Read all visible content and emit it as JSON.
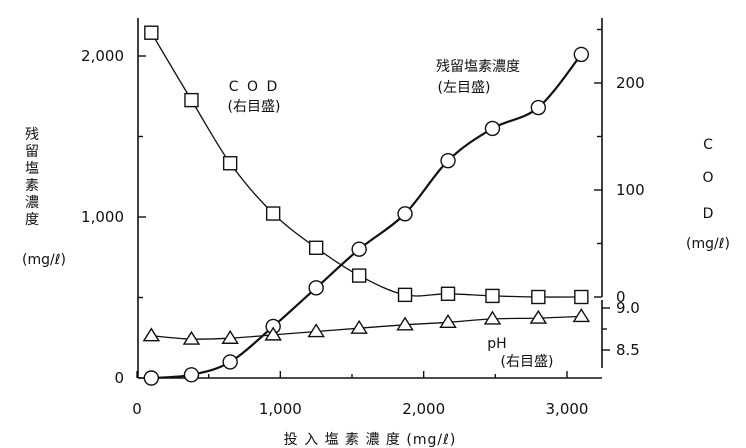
{
  "chart_data": {
    "type": "line",
    "title": "",
    "xlabel": "投 入 塩 素 濃 度 (mg/ℓ)",
    "xlim": [
      0,
      3200
    ],
    "x_ticks": [
      0,
      1000,
      2000,
      3000
    ],
    "x_tick_labels": [
      "0",
      "1,000",
      "2,000",
      "3,000"
    ],
    "left_axis": {
      "label": [
        "残",
        "留",
        "塩",
        "素",
        "濃",
        "度",
        "(mg/ℓ)"
      ],
      "ylim": [
        0,
        2300
      ],
      "ticks": [
        0,
        1000,
        2000
      ],
      "tick_labels": [
        "0",
        "1,000",
        "2,000"
      ]
    },
    "right_cod_axis": {
      "label": [
        "C",
        "O",
        "D",
        "(mg/ℓ)"
      ],
      "ylim": [
        0,
        260
      ],
      "ticks": [
        0,
        100,
        200
      ],
      "tick_labels": [
        "0",
        "100",
        "200"
      ]
    },
    "right_ph_axis": {
      "ylim": [
        8.3,
        9.2
      ],
      "ticks": [
        8.5,
        9.0
      ],
      "tick_labels": [
        "8.5",
        "9.0"
      ]
    },
    "series": [
      {
        "name": "残留塩素濃度",
        "axis": "left",
        "marker": "circle",
        "x": [
          100,
          380,
          650,
          950,
          1250,
          1550,
          1870,
          2170,
          2480,
          2800,
          3100
        ],
        "y": [
          0,
          20,
          100,
          320,
          560,
          800,
          1020,
          1350,
          1550,
          1680,
          2010
        ]
      },
      {
        "name": "COD",
        "axis": "right_cod",
        "marker": "square",
        "x": [
          100,
          380,
          650,
          950,
          1250,
          1550,
          1870,
          2170,
          2480,
          2800,
          3100
        ],
        "y": [
          247,
          184,
          125,
          78,
          46,
          20,
          2,
          3,
          1,
          0,
          0
        ]
      },
      {
        "name": "pH",
        "axis": "right_ph",
        "marker": "triangle",
        "x": [
          100,
          380,
          650,
          950,
          1250,
          1550,
          1870,
          2170,
          2480,
          2800,
          3100
        ],
        "y": [
          8.67,
          8.63,
          8.64,
          8.68,
          8.72,
          8.76,
          8.8,
          8.83,
          8.87,
          8.88,
          8.9
        ]
      }
    ],
    "annotations": {
      "residual_name": "残留塩素濃度",
      "residual_scale": "(左目盛)",
      "cod_name": "C O D",
      "cod_scale": "(右目盛)",
      "ph_name": "pH",
      "ph_scale": "(右目盛)"
    }
  }
}
